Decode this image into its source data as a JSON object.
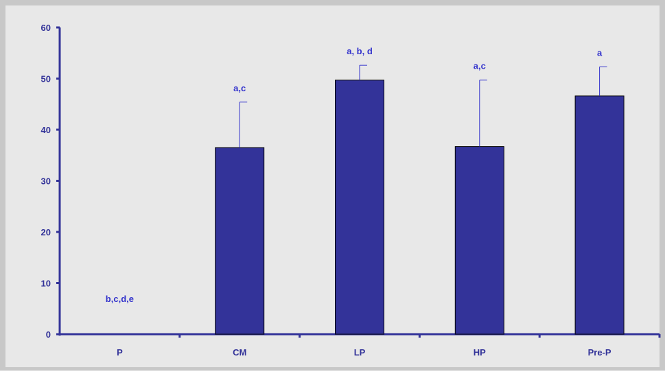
{
  "chart_data": {
    "type": "bar",
    "title": "",
    "xlabel": "",
    "ylabel": "",
    "categories": [
      "P",
      "CM",
      "LP",
      "HP",
      "Pre-P"
    ],
    "values": [
      0,
      36.5,
      49.7,
      36.7,
      46.6
    ],
    "error_upper": [
      0,
      45.4,
      52.6,
      49.7,
      52.3
    ],
    "annotations": [
      "b,c,d,e",
      "a,c",
      "a, b, d",
      "a,c",
      "a"
    ],
    "ylim": [
      0,
      60
    ],
    "yticks": [
      "0",
      "10",
      "20",
      "30",
      "40",
      "50",
      "60"
    ],
    "grid": false,
    "legend": "none"
  },
  "colors": {
    "background": "#e8e8e8",
    "frame": "#c0c0c0",
    "bar_fill": "#333399",
    "bar_stroke": "#000000",
    "axis": "#333399",
    "text": "#333399",
    "annotation_text": "#3333cc",
    "error_bar": "#3333cc"
  }
}
